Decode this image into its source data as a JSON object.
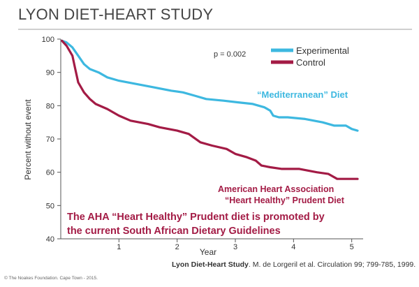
{
  "slide": {
    "title": "LYON DIET-HEART STUDY",
    "citation_bold": "Lyon Diet-Heart Study",
    "citation_rest": ". M. de Lorgeril et al.  Circulation 99; 799-785, 1999.",
    "copyright": "© The Noakes Foundation. Cape Town - 2015."
  },
  "chart_data": {
    "type": "line",
    "title": "",
    "xlabel": "Year",
    "ylabel": "Percent without event",
    "xlim": [
      0,
      5.1
    ],
    "ylim": [
      40,
      100
    ],
    "xticks": [
      1,
      2,
      3,
      4,
      5
    ],
    "yticks": [
      40,
      50,
      60,
      70,
      80,
      90,
      100
    ],
    "grid": false,
    "legend_position": "top-right",
    "pvalue": "p = 0.002",
    "series": [
      {
        "name": "Experimental",
        "color": "#3db8e0",
        "points": [
          [
            0.02,
            99.5
          ],
          [
            0.1,
            99.0
          ],
          [
            0.2,
            97.5
          ],
          [
            0.3,
            95.0
          ],
          [
            0.4,
            92.5
          ],
          [
            0.5,
            91.0
          ],
          [
            0.65,
            90.0
          ],
          [
            0.8,
            88.5
          ],
          [
            1.0,
            87.5
          ],
          [
            1.3,
            86.5
          ],
          [
            1.6,
            85.5
          ],
          [
            1.9,
            84.5
          ],
          [
            2.1,
            84.0
          ],
          [
            2.3,
            83.0
          ],
          [
            2.5,
            82.0
          ],
          [
            2.8,
            81.5
          ],
          [
            3.05,
            81.0
          ],
          [
            3.3,
            80.5
          ],
          [
            3.5,
            79.5
          ],
          [
            3.6,
            78.5
          ],
          [
            3.65,
            77.0
          ],
          [
            3.75,
            76.5
          ],
          [
            3.9,
            76.5
          ],
          [
            4.2,
            76.0
          ],
          [
            4.5,
            75.0
          ],
          [
            4.7,
            74.0
          ],
          [
            4.9,
            74.0
          ],
          [
            5.0,
            73.0
          ],
          [
            5.1,
            72.5
          ]
        ]
      },
      {
        "name": "Control",
        "color": "#a31b45",
        "points": [
          [
            0.02,
            99.5
          ],
          [
            0.1,
            98.0
          ],
          [
            0.2,
            95.0
          ],
          [
            0.25,
            91.0
          ],
          [
            0.3,
            87.0
          ],
          [
            0.4,
            84.0
          ],
          [
            0.5,
            82.0
          ],
          [
            0.6,
            80.5
          ],
          [
            0.8,
            79.0
          ],
          [
            1.0,
            77.0
          ],
          [
            1.2,
            75.5
          ],
          [
            1.5,
            74.5
          ],
          [
            1.7,
            73.5
          ],
          [
            2.0,
            72.5
          ],
          [
            2.2,
            71.5
          ],
          [
            2.4,
            69.0
          ],
          [
            2.6,
            68.0
          ],
          [
            2.85,
            67.0
          ],
          [
            3.0,
            65.5
          ],
          [
            3.2,
            64.5
          ],
          [
            3.35,
            63.5
          ],
          [
            3.45,
            62.0
          ],
          [
            3.6,
            61.5
          ],
          [
            3.8,
            61.0
          ],
          [
            4.1,
            61.0
          ],
          [
            4.4,
            60.0
          ],
          [
            4.6,
            59.5
          ],
          [
            4.75,
            58.0
          ],
          [
            5.0,
            58.0
          ],
          [
            5.1,
            58.0
          ]
        ]
      }
    ],
    "annotations": {
      "mediterranean": "“Mediterranean” Diet",
      "aha_line1": "American Heart Association",
      "aha_line2": "“Heart Healthy” Prudent Diet",
      "note_line1": "The AHA “Heart Healthy” Prudent diet is promoted by",
      "note_line2": "the current South African Dietary Guidelines"
    }
  }
}
